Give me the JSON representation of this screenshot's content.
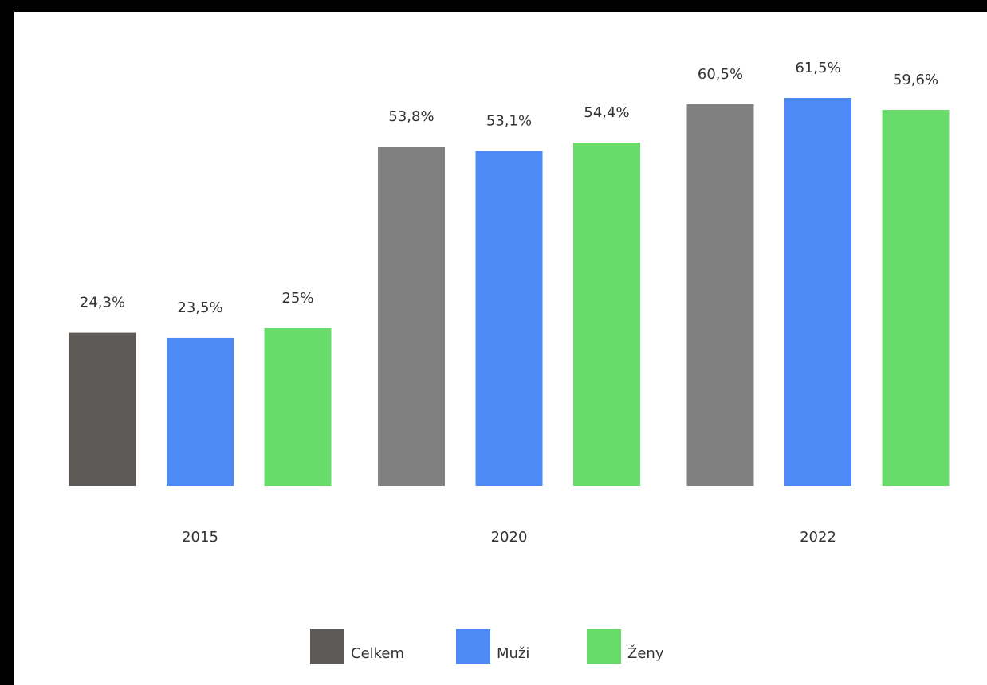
{
  "chart_data": {
    "type": "bar",
    "categories": [
      "2015",
      "2020",
      "2022"
    ],
    "series": [
      {
        "name": "Celkem",
        "color": "#5e5a58",
        "colors": [
          "#5e5a58",
          "#808080",
          "#808080"
        ],
        "values": [
          24.3,
          53.8,
          60.5
        ],
        "value_labels": [
          "24,3%",
          "53,8%",
          "60,5%"
        ]
      },
      {
        "name": "Muži",
        "color": "#4d8af5",
        "values": [
          23.5,
          53.1,
          61.5
        ],
        "value_labels": [
          "23,5%",
          "53,1%",
          "61,5%"
        ]
      },
      {
        "name": "Ženy",
        "color": "#68dc6a",
        "values": [
          25,
          54.4,
          59.6
        ],
        "value_labels": [
          "25%",
          "54,4%",
          "59,6%"
        ]
      }
    ],
    "legend": "bottom"
  }
}
